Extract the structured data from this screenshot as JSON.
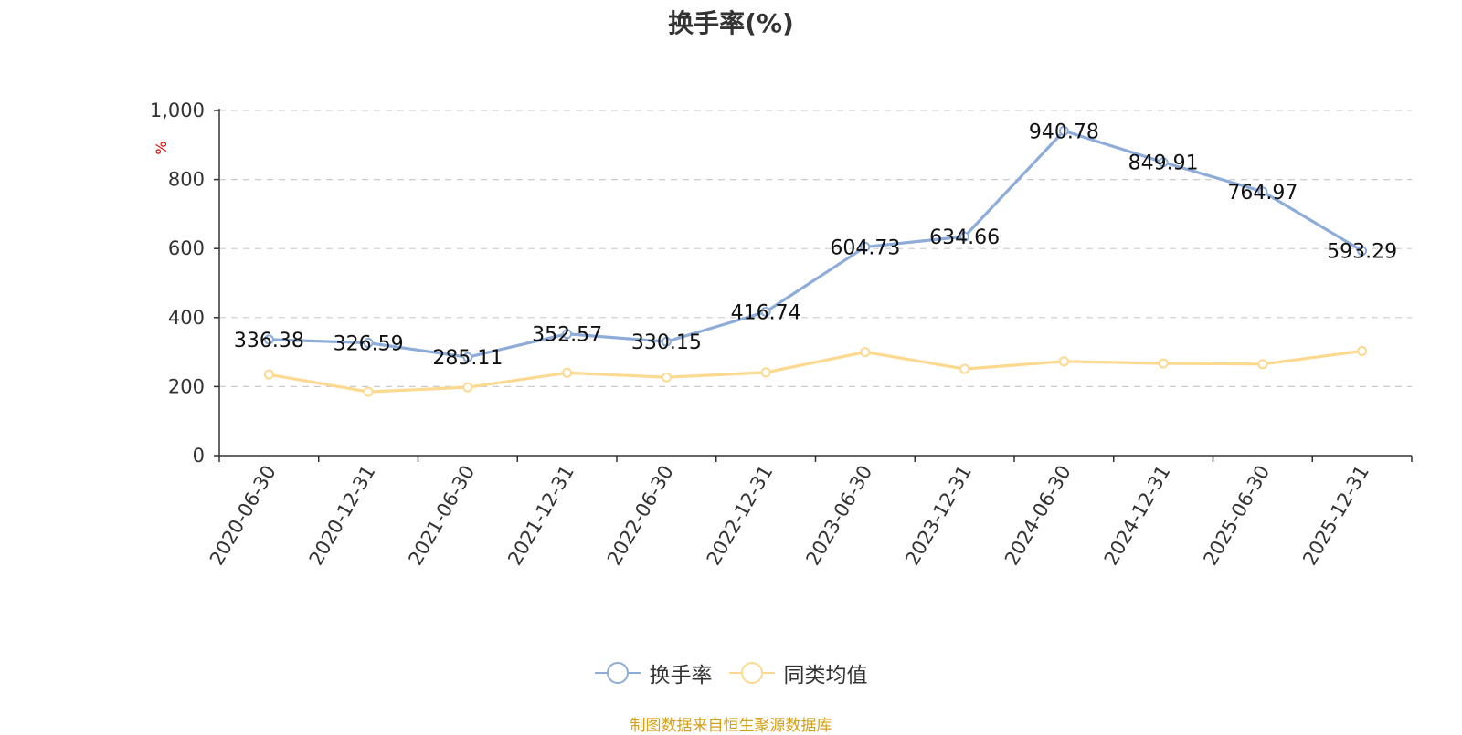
{
  "chart_data": {
    "type": "line",
    "title": "换手率(%)",
    "unit_label": "%",
    "categories": [
      "2020-06-30",
      "2020-12-31",
      "2021-06-30",
      "2021-12-31",
      "2022-06-30",
      "2022-12-31",
      "2023-06-30",
      "2023-12-31",
      "2024-06-30",
      "2024-12-31",
      "2025-06-30",
      "2025-12-31"
    ],
    "ylim": [
      0,
      1000
    ],
    "yticks": [
      0,
      200,
      400,
      600,
      800,
      1000
    ],
    "ytick_labels": [
      "0",
      "200",
      "400",
      "600",
      "800",
      "1,000"
    ],
    "grid": true,
    "legend_position": "bottom",
    "series": [
      {
        "name": "换手率",
        "color": "#8eacd9",
        "show_labels": true,
        "values": [
          336.38,
          326.59,
          285.11,
          352.57,
          330.15,
          416.74,
          604.73,
          634.66,
          940.78,
          849.91,
          764.97,
          593.29
        ],
        "labels": [
          "336.38",
          "326.59",
          "285.11",
          "352.57",
          "330.15",
          "416.74",
          "604.73",
          "634.66",
          "940.78",
          "849.91",
          "764.97",
          "593.29"
        ]
      },
      {
        "name": "同类均值",
        "color": "#fcd98f",
        "show_labels": false,
        "values": [
          235,
          185,
          198,
          240,
          227,
          241,
          300,
          251,
          273,
          267,
          265,
          303
        ]
      }
    ]
  },
  "footer": {
    "source": "制图数据来自恒生聚源数据库"
  }
}
